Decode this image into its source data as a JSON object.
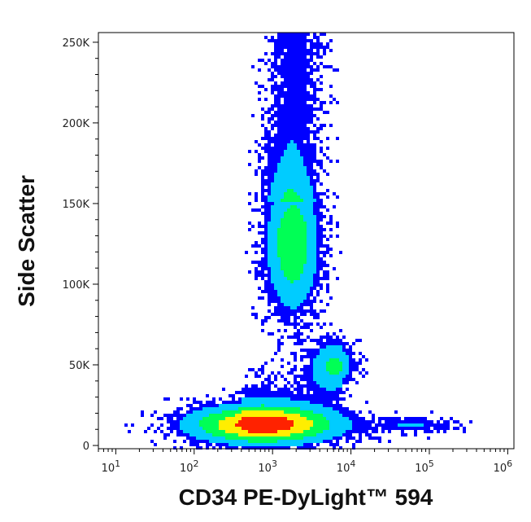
{
  "chart_data": {
    "type": "scatter",
    "subtype": "flow-cytometry-density",
    "xlabel": "CD34 PE-DyLight™ 594",
    "ylabel": "Side Scatter",
    "x_scale": "log",
    "xlim": [
      6,
      1200000
    ],
    "ylim": [
      -2000,
      256000
    ],
    "x_ticks": [
      {
        "value": 10,
        "base": "10",
        "exp": "1"
      },
      {
        "value": 100,
        "base": "10",
        "exp": "2"
      },
      {
        "value": 1000,
        "base": "10",
        "exp": "3"
      },
      {
        "value": 10000,
        "base": "10",
        "exp": "4"
      },
      {
        "value": 100000,
        "base": "10",
        "exp": "5"
      },
      {
        "value": 1000000,
        "base": "10",
        "exp": "6"
      }
    ],
    "y_ticks": [
      {
        "value": 0,
        "label": "0"
      },
      {
        "value": 50000,
        "label": "50K"
      },
      {
        "value": 100000,
        "label": "100K"
      },
      {
        "value": 150000,
        "label": "150K"
      },
      {
        "value": 200000,
        "label": "200K"
      },
      {
        "value": 250000,
        "label": "250K"
      }
    ],
    "grid": false,
    "colors": [
      "#0000ff",
      "#00ccff",
      "#00ff55",
      "#ffee00",
      "#ff2200"
    ],
    "populations": [
      {
        "x_center": 800,
        "y_center": 13000,
        "x_spread_decades": 0.55,
        "y_spread": 7000,
        "peak_density": 1.0
      },
      {
        "x_center": 1800,
        "y_center": 125000,
        "x_spread_decades": 0.2,
        "y_spread": 25000,
        "peak_density": 0.5
      },
      {
        "x_center": 6000,
        "y_center": 50000,
        "x_spread_decades": 0.17,
        "y_spread": 9000,
        "peak_density": 0.3
      },
      {
        "x_center": 60000,
        "y_center": 13000,
        "x_spread_decades": 0.35,
        "y_spread": 3000,
        "peak_density": 0.15
      }
    ]
  }
}
